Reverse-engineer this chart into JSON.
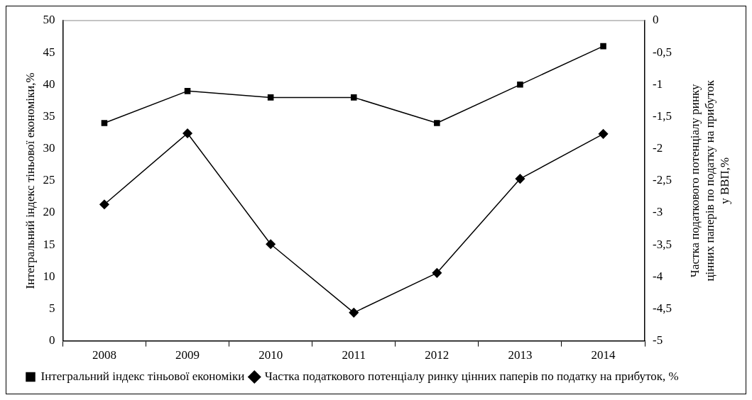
{
  "chart_data": {
    "type": "line",
    "categories": [
      "2008",
      "2009",
      "2010",
      "2011",
      "2012",
      "2013",
      "2014"
    ],
    "ylabel": "Інтегральний індекс тіньової економіки,%",
    "y2label": "Частка податкового потенціалу ринку цінних паперів по податку на прибуток у ВВП,%",
    "ylim": [
      0,
      50
    ],
    "yticks": [
      0,
      5,
      10,
      15,
      20,
      25,
      30,
      35,
      40,
      45,
      50
    ],
    "y2lim": [
      -5,
      0
    ],
    "y2ticks": [
      {
        "value": -5,
        "label": "-5"
      },
      {
        "value": -4.5,
        "label": "-4,5"
      },
      {
        "value": -4,
        "label": "-4"
      },
      {
        "value": -3.5,
        "label": "-3,5"
      },
      {
        "value": -3,
        "label": "-3"
      },
      {
        "value": -2.5,
        "label": "-2,5"
      },
      {
        "value": -2,
        "label": "-2"
      },
      {
        "value": -1.5,
        "label": "-1,5"
      },
      {
        "value": -1,
        "label": "-1"
      },
      {
        "value": -0.5,
        "label": "-0,5"
      },
      {
        "value": 0,
        "label": "0"
      }
    ],
    "grid": false,
    "legend": "bottom",
    "line_style": "solid",
    "series": [
      {
        "name": "Інтегральний індекс тіньової економіки",
        "color": "#000000",
        "marker": "square",
        "values": [
          34,
          39,
          38,
          38,
          34,
          40,
          46
        ]
      },
      {
        "name": "Частка податкового потенціалу ринку цінних паперів по податку на прибуток, %",
        "color": "#000000",
        "marker": "diamond",
        "axis": "y2",
        "values": [
          -2.87,
          -1.76,
          -3.49,
          -4.56,
          -3.94,
          -2.47,
          -1.77
        ]
      }
    ]
  }
}
